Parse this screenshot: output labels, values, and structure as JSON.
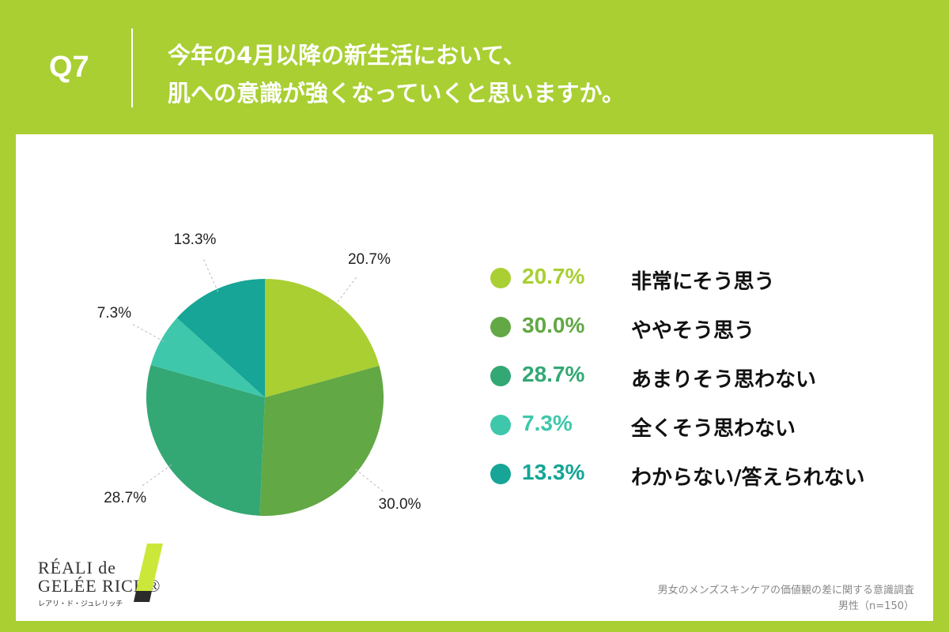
{
  "header": {
    "question_no": "Q7",
    "title_line1": "今年の4月以降の新生活において、",
    "title_line2": "肌への意識が強くなっていくと思いますか。"
  },
  "chart_data": {
    "type": "pie",
    "categories": [
      "非常にそう思う",
      "ややそう思う",
      "あまりそう思わない",
      "全くそう思わない",
      "わからない/答えられない"
    ],
    "values": [
      20.7,
      30.0,
      28.7,
      7.3,
      13.3
    ],
    "labels": [
      "20.7%",
      "30.0%",
      "28.7%",
      "7.3%",
      "13.3%"
    ],
    "colors": [
      "#a9cf33",
      "#62a844",
      "#33a874",
      "#3fc7ab",
      "#16a596"
    ],
    "start": "top",
    "direction": "clockwise",
    "legend_placement": "right"
  },
  "legend": [
    {
      "pct": "20.7%",
      "label": "非常にそう思う",
      "color": "#a9cf33"
    },
    {
      "pct": "30.0%",
      "label": "ややそう思う",
      "color": "#62a844"
    },
    {
      "pct": "28.7%",
      "label": "あまりそう思わない",
      "color": "#33a874"
    },
    {
      "pct": "7.3%",
      "label": "全くそう思わない",
      "color": "#3fc7ab"
    },
    {
      "pct": "13.3%",
      "label": "わからない/答えられない",
      "color": "#16a596"
    }
  ],
  "logo": {
    "line1": "RÉALI de",
    "line2": "GELÉE RICH®",
    "line3": "レアリ・ド・ジュレリッチ",
    "accent_color": "#cbe83a"
  },
  "footnote": {
    "line1": "男女のメンズスキンケアの価値観の差に関する意識調査",
    "line2": "男性（n=150）"
  }
}
